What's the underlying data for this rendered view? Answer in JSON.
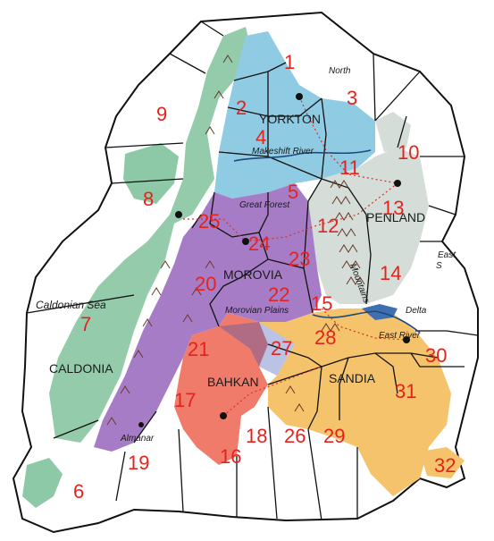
{
  "map": {
    "regions": [
      {
        "name": "YORKTON",
        "color": "#8fcbe3"
      },
      {
        "name": "PENLAND",
        "color": "#d4ddd8"
      },
      {
        "name": "MOROVIA",
        "color": "#a77cc6"
      },
      {
        "name": "CALDONIA",
        "color": "#8ec9a7"
      },
      {
        "name": "BAHKAN",
        "color": "#f07b6b"
      },
      {
        "name": "SANDIA",
        "color": "#f4c36b"
      }
    ],
    "labels": {
      "north": "North",
      "makeshift_river": "Makeshift River",
      "great_forest": "Great Forest",
      "caldonian_sea": "Caldonian Sea",
      "morovian_plains": "Morovian Plains",
      "almanar": "Almanar",
      "delta": "Delta",
      "east_river": "East River",
      "east": "East",
      "east_s": "S",
      "mountains": "Mountains"
    },
    "territories": [
      "1",
      "2",
      "3",
      "4",
      "5",
      "6",
      "7",
      "8",
      "9",
      "10",
      "11",
      "12",
      "13",
      "14",
      "15",
      "16",
      "17",
      "18",
      "19",
      "20",
      "21",
      "22",
      "23",
      "24",
      "25",
      "26",
      "27",
      "28",
      "29",
      "30",
      "31",
      "32"
    ]
  }
}
